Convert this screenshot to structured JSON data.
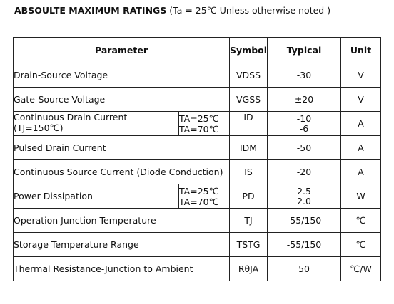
{
  "heading": {
    "bold": "ABSOULTE MAXIMUM RATINGS",
    "note": " (Ta = 25℃ Unless otherwise noted )"
  },
  "table": {
    "headers": {
      "parameter": "Parameter",
      "symbol": "Symbol",
      "typical": "Typical",
      "unit": "Unit"
    },
    "rows": [
      {
        "parameter": "Drain-Source Voltage",
        "symbol": "VDSS",
        "typical": "-30",
        "unit": "V"
      },
      {
        "parameter": "Gate-Source Voltage",
        "symbol": "VGSS",
        "typical": "±20",
        "unit": "V"
      },
      {
        "parameter_line1": "Continuous Drain Current",
        "parameter_line2": "(TJ=150℃)",
        "condition_line1": "TA=25℃",
        "condition_line2": "TA=70℃",
        "symbol": "ID",
        "typical_line1": "-10",
        "typical_line2": "-6",
        "unit": "A"
      },
      {
        "parameter": "Pulsed Drain Current",
        "symbol": "IDM",
        "typical": "-50",
        "unit": "A"
      },
      {
        "parameter": "Continuous Source Current (Diode Conduction)",
        "symbol": "IS",
        "typical": "-20",
        "unit": "A"
      },
      {
        "parameter": "Power Dissipation",
        "condition_line1": "TA=25℃",
        "condition_line2": "TA=70℃",
        "symbol": "PD",
        "typical_line1": "2.5",
        "typical_line2": "2.0",
        "unit": "W"
      },
      {
        "parameter": "Operation Junction Temperature",
        "symbol": "TJ",
        "typical": "-55/150",
        "unit": "℃"
      },
      {
        "parameter": "Storage Temperature Range",
        "symbol": "TSTG",
        "typical": "-55/150",
        "unit": "℃"
      },
      {
        "parameter": "Thermal Resistance-Junction to Ambient",
        "symbol": "RθJA",
        "typical": "50",
        "unit": "℃/W"
      }
    ]
  }
}
